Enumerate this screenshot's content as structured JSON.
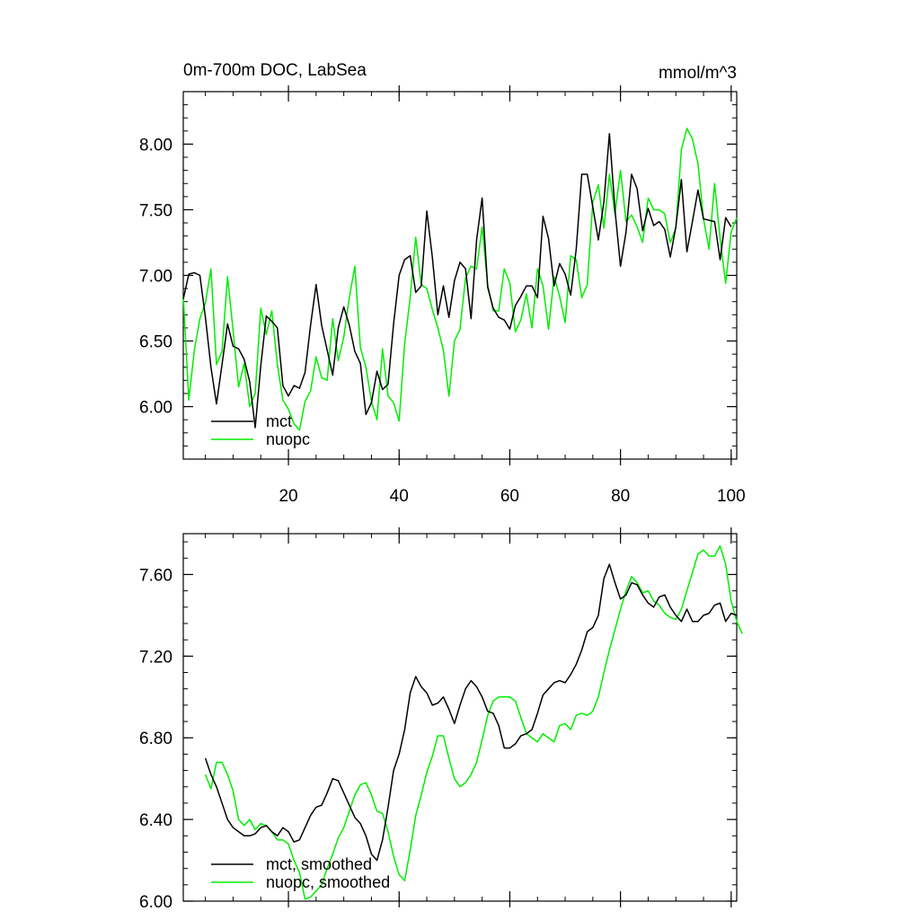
{
  "chart_data": [
    {
      "type": "line",
      "title": "0m-700m DOC, LabSea",
      "units": "mmol/m^3",
      "xlim": [
        1,
        101
      ],
      "ylim": [
        5.6,
        8.4
      ],
      "xticks": [
        20,
        40,
        60,
        80,
        100
      ],
      "xtick_labels": [
        "20",
        "40",
        "60",
        "80",
        "100"
      ],
      "yticks": [
        6.0,
        6.5,
        7.0,
        7.5,
        8.0
      ],
      "ytick_labels": [
        "6.00",
        "6.50",
        "7.00",
        "7.50",
        "8.00"
      ],
      "legend": "bottom-left",
      "series": [
        {
          "name": "mct",
          "color": "#000000",
          "x_start": 1,
          "values": [
            6.82,
            7.01,
            7.02,
            7.0,
            6.68,
            6.3,
            6.02,
            6.32,
            6.63,
            6.46,
            6.44,
            6.36,
            6.19,
            5.84,
            6.31,
            6.69,
            6.65,
            6.6,
            6.16,
            6.08,
            6.16,
            6.14,
            6.26,
            6.62,
            6.93,
            6.62,
            6.43,
            6.24,
            6.6,
            6.76,
            6.62,
            6.42,
            6.33,
            5.94,
            6.03,
            6.27,
            6.13,
            6.17,
            6.63,
            7.0,
            7.12,
            7.15,
            6.87,
            6.92,
            7.49,
            7.14,
            6.7,
            6.92,
            6.68,
            6.96,
            7.1,
            7.05,
            6.67,
            7.27,
            7.59,
            6.91,
            6.75,
            6.68,
            6.66,
            6.59,
            6.77,
            6.84,
            6.92,
            6.92,
            6.83,
            7.45,
            7.28,
            6.92,
            7.09,
            7.01,
            6.85,
            7.2,
            7.77,
            7.77,
            7.52,
            7.27,
            7.56,
            8.08,
            7.5,
            7.07,
            7.33,
            7.77,
            7.66,
            7.34,
            7.51,
            7.38,
            7.41,
            7.35,
            7.14,
            7.37,
            7.73,
            7.18,
            7.41,
            7.65,
            7.43,
            7.42,
            7.41,
            7.12,
            7.44,
            7.37
          ]
        },
        {
          "name": "nuopc",
          "color": "#00ee00",
          "x_start": 1,
          "values": [
            6.84,
            6.05,
            6.43,
            6.67,
            6.79,
            7.05,
            6.32,
            6.42,
            6.99,
            6.58,
            6.15,
            6.33,
            6.0,
            6.1,
            6.75,
            6.55,
            6.73,
            6.32,
            6.05,
            5.98,
            5.87,
            5.82,
            6.04,
            6.12,
            6.38,
            6.22,
            6.2,
            6.67,
            6.35,
            6.53,
            6.83,
            7.07,
            6.45,
            6.3,
            6.04,
            5.9,
            6.44,
            6.08,
            6.03,
            5.89,
            6.48,
            6.83,
            7.29,
            6.93,
            6.9,
            6.74,
            6.6,
            6.43,
            6.08,
            6.5,
            6.59,
            6.98,
            7.07,
            7.05,
            7.37,
            6.93,
            6.73,
            6.73,
            7.05,
            6.94,
            6.57,
            6.66,
            6.86,
            6.6,
            7.05,
            6.92,
            6.59,
            6.99,
            6.84,
            6.64,
            7.15,
            7.12,
            6.83,
            6.93,
            7.56,
            7.69,
            7.36,
            7.77,
            7.47,
            7.8,
            7.41,
            7.46,
            7.37,
            7.25,
            7.59,
            7.5,
            7.5,
            7.47,
            7.25,
            7.36,
            7.96,
            8.12,
            8.04,
            7.85,
            7.43,
            7.2,
            7.7,
            7.28,
            6.94,
            7.33,
            7.44
          ]
        }
      ]
    },
    {
      "type": "line",
      "title": "",
      "units": "",
      "xlim": [
        1,
        101
      ],
      "ylim": [
        6.0,
        7.8
      ],
      "xticks": [
        20,
        40,
        60,
        80,
        100
      ],
      "xtick_labels": [],
      "yticks": [
        6.0,
        6.4,
        6.8,
        7.2,
        7.6
      ],
      "ytick_labels": [
        "6.00",
        "6.40",
        "6.80",
        "7.20",
        "7.60"
      ],
      "legend": "bottom-left",
      "series": [
        {
          "name": "mct, smoothed",
          "color": "#000000",
          "x_start": 5,
          "values": [
            6.7,
            6.62,
            6.56,
            6.48,
            6.4,
            6.36,
            6.34,
            6.32,
            6.32,
            6.33,
            6.36,
            6.37,
            6.34,
            6.32,
            6.36,
            6.34,
            6.29,
            6.3,
            6.36,
            6.42,
            6.46,
            6.47,
            6.53,
            6.6,
            6.59,
            6.53,
            6.47,
            6.41,
            6.38,
            6.32,
            6.23,
            6.2,
            6.3,
            6.46,
            6.64,
            6.72,
            6.84,
            7.02,
            7.1,
            7.05,
            7.02,
            6.96,
            6.97,
            7.0,
            6.94,
            6.87,
            6.96,
            7.04,
            7.08,
            7.05,
            7.0,
            6.93,
            6.92,
            6.86,
            6.75,
            6.75,
            6.77,
            6.81,
            6.82,
            6.84,
            6.92,
            7.01,
            7.04,
            7.07,
            7.08,
            7.07,
            7.11,
            7.16,
            7.23,
            7.32,
            7.34,
            7.4,
            7.58,
            7.65,
            7.56,
            7.48,
            7.5,
            7.56,
            7.55,
            7.5,
            7.46,
            7.44,
            7.49,
            7.5,
            7.44,
            7.4,
            7.37,
            7.43,
            7.37,
            7.37,
            7.4,
            7.41,
            7.45,
            7.46,
            7.37,
            7.41,
            7.4
          ]
        },
        {
          "name": "nuopc, smoothed",
          "color": "#00ee00",
          "x_start": 5,
          "values": [
            6.62,
            6.55,
            6.68,
            6.68,
            6.62,
            6.54,
            6.4,
            6.37,
            6.4,
            6.35,
            6.38,
            6.37,
            6.34,
            6.3,
            6.3,
            6.28,
            6.2,
            6.14,
            6.01,
            6.02,
            6.05,
            6.08,
            6.16,
            6.23,
            6.31,
            6.36,
            6.44,
            6.52,
            6.57,
            6.58,
            6.52,
            6.44,
            6.43,
            6.34,
            6.22,
            6.13,
            6.1,
            6.25,
            6.42,
            6.52,
            6.63,
            6.71,
            6.81,
            6.81,
            6.7,
            6.6,
            6.56,
            6.58,
            6.62,
            6.68,
            6.79,
            6.91,
            6.98,
            7.0,
            7.0,
            7.0,
            6.98,
            6.9,
            6.82,
            6.8,
            6.78,
            6.82,
            6.8,
            6.78,
            6.86,
            6.87,
            6.84,
            6.91,
            6.92,
            6.91,
            6.93,
            7.0,
            7.12,
            7.23,
            7.33,
            7.43,
            7.52,
            7.59,
            7.56,
            7.51,
            7.52,
            7.47,
            7.45,
            7.41,
            7.39,
            7.38,
            7.43,
            7.52,
            7.61,
            7.7,
            7.72,
            7.69,
            7.69,
            7.74,
            7.65,
            7.47,
            7.37,
            7.31
          ]
        }
      ]
    }
  ]
}
